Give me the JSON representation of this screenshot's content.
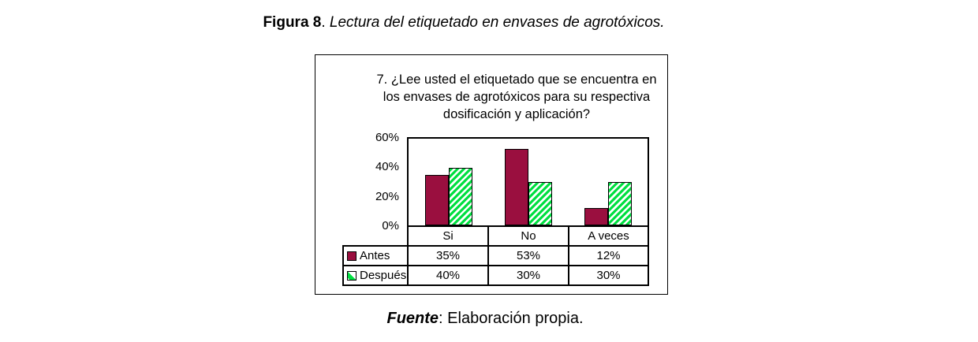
{
  "figure": {
    "caption_label": "Figura 8",
    "caption_sep": ". ",
    "caption_text": "Lectura del etiquetado en envases de agrotóxicos.",
    "source_label": "Fuente",
    "source_text": ": Elaboración propia."
  },
  "chart": {
    "title_lines": [
      "7. ¿Lee usted el etiquetado que se encuentra en",
      "los envases de agrotóxicos para su respectiva",
      "dosificación y aplicación?"
    ]
  },
  "chart_data": {
    "type": "bar",
    "title": "7. ¿Lee usted el etiquetado que se encuentra en los envases de agrotóxicos para su respectiva dosificación y aplicación?",
    "categories": [
      "Si",
      "No",
      "A veces"
    ],
    "series": [
      {
        "name": "Antes",
        "values": [
          35,
          53,
          12
        ],
        "unit": "%",
        "color": "#9A0F3F",
        "pattern": "solid"
      },
      {
        "name": "Después",
        "values": [
          40,
          30,
          30
        ],
        "unit": "%",
        "color": "#00DF40",
        "pattern": "diagonal-hatch"
      }
    ],
    "ylim": [
      0,
      60
    ],
    "yticks": [
      "0%",
      "20%",
      "40%",
      "60%"
    ],
    "grid": false,
    "legend_position": "table-left",
    "colors": {
      "axis": "#000000",
      "plot_bg": "#FFFFFF",
      "hatch_bg": "#FFFFFF"
    }
  },
  "table": {
    "headers": [
      "Si",
      "No",
      "A veces"
    ],
    "rows": [
      {
        "label": "Antes",
        "cells": [
          "35%",
          "53%",
          "12%"
        ]
      },
      {
        "label": "Después",
        "cells": [
          "40%",
          "30%",
          "30%"
        ]
      }
    ]
  }
}
